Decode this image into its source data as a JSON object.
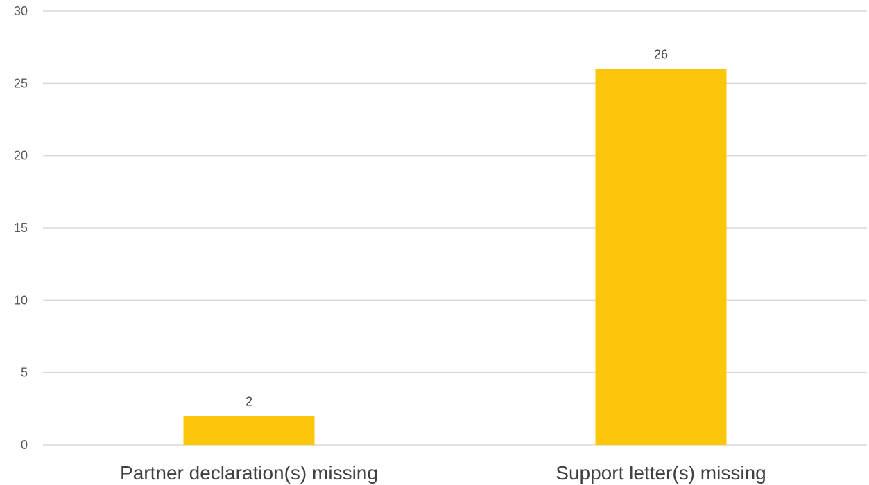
{
  "chart_data": {
    "type": "bar",
    "title": "",
    "xlabel": "",
    "ylabel": "",
    "categories": [
      "Partner declaration(s) missing",
      "Support letter(s) missing"
    ],
    "values": [
      2,
      26
    ],
    "data_labels": [
      "2",
      "26"
    ],
    "ylim": [
      0,
      30
    ],
    "yticks": [
      0,
      5,
      10,
      15,
      20,
      25,
      30
    ],
    "ytick_labels": [
      "0",
      "5",
      "10",
      "15",
      "20",
      "25",
      "30"
    ],
    "grid": true,
    "legend": "none",
    "bar_color": "#fcc60a",
    "grid_color": "#d9d9d9"
  }
}
